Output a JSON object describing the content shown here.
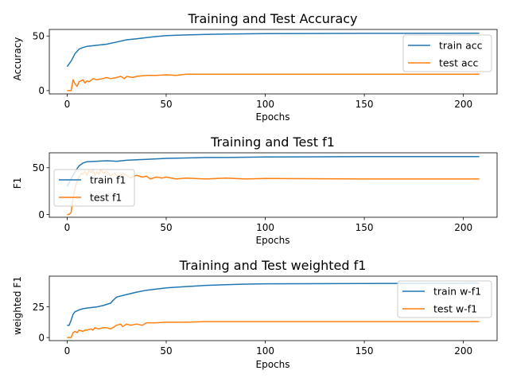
{
  "colors": {
    "train": "#1f77b4",
    "test": "#ff7f0e"
  },
  "chart_data": [
    {
      "type": "line",
      "title": "Training and Test Accuracy",
      "xlabel": "Epochs",
      "ylabel": "Accuracy",
      "xlim": [
        -9,
        217
      ],
      "ylim": [
        -3,
        56
      ],
      "xticks": [
        0,
        50,
        100,
        150,
        200
      ],
      "yticks": [
        0,
        50
      ],
      "legend": "upper-right",
      "series": [
        {
          "name": "train acc",
          "color": "#1f77b4",
          "points": [
            [
              0,
              22
            ],
            [
              2,
              27
            ],
            [
              4,
              34
            ],
            [
              6,
              38
            ],
            [
              8,
              39.5
            ],
            [
              10,
              40.5
            ],
            [
              15,
              41.5
            ],
            [
              20,
              42.5
            ],
            [
              25,
              44.5
            ],
            [
              30,
              46.5
            ],
            [
              35,
              47.5
            ],
            [
              40,
              48.5
            ],
            [
              45,
              49.5
            ],
            [
              50,
              50.3
            ],
            [
              60,
              51
            ],
            [
              70,
              51.4
            ],
            [
              80,
              51.8
            ],
            [
              90,
              52
            ],
            [
              100,
              52.2
            ],
            [
              150,
              52.4
            ],
            [
              208,
              52.5
            ]
          ]
        },
        {
          "name": "test acc",
          "color": "#ff7f0e",
          "points": [
            [
              0,
              0
            ],
            [
              1,
              0
            ],
            [
              2,
              0
            ],
            [
              3,
              10
            ],
            [
              4,
              6
            ],
            [
              5,
              4
            ],
            [
              6,
              8
            ],
            [
              8,
              10
            ],
            [
              9,
              7
            ],
            [
              10,
              9
            ],
            [
              11,
              8
            ],
            [
              13,
              11
            ],
            [
              15,
              10
            ],
            [
              18,
              11
            ],
            [
              20,
              12
            ],
            [
              22,
              11
            ],
            [
              25,
              12
            ],
            [
              27,
              13
            ],
            [
              29,
              11
            ],
            [
              30,
              13
            ],
            [
              33,
              12
            ],
            [
              35,
              13
            ],
            [
              40,
              14
            ],
            [
              45,
              14
            ],
            [
              50,
              14.5
            ],
            [
              55,
              14
            ],
            [
              60,
              15
            ],
            [
              70,
              15
            ],
            [
              80,
              15
            ],
            [
              100,
              15
            ],
            [
              150,
              15
            ],
            [
              208,
              15
            ]
          ]
        }
      ]
    },
    {
      "type": "line",
      "title": "Training and Test f1",
      "xlabel": "Epochs",
      "ylabel": "F1",
      "xlim": [
        -9,
        217
      ],
      "ylim": [
        -3,
        66
      ],
      "xticks": [
        0,
        50,
        100,
        150,
        200
      ],
      "yticks": [
        0,
        50
      ],
      "legend": "center-left",
      "series": [
        {
          "name": "train f1",
          "color": "#1f77b4",
          "points": [
            [
              0,
              30
            ],
            [
              2,
              38
            ],
            [
              4,
              46
            ],
            [
              6,
              52
            ],
            [
              8,
              55
            ],
            [
              10,
              56.5
            ],
            [
              15,
              57
            ],
            [
              20,
              57.5
            ],
            [
              25,
              57
            ],
            [
              30,
              58
            ],
            [
              35,
              58.5
            ],
            [
              40,
              59
            ],
            [
              50,
              60
            ],
            [
              60,
              60.5
            ],
            [
              70,
              61
            ],
            [
              80,
              61
            ],
            [
              100,
              61.5
            ],
            [
              150,
              62
            ],
            [
              208,
              62
            ]
          ]
        },
        {
          "name": "test f1",
          "color": "#ff7f0e",
          "points": [
            [
              0,
              0
            ],
            [
              1,
              0
            ],
            [
              2,
              2
            ],
            [
              3,
              18
            ],
            [
              4,
              28
            ],
            [
              5,
              35
            ],
            [
              6,
              40
            ],
            [
              7,
              44
            ],
            [
              8,
              43
            ],
            [
              9,
              46
            ],
            [
              10,
              42
            ],
            [
              11,
              47
            ],
            [
              12,
              45
            ],
            [
              13,
              48
            ],
            [
              14,
              42
            ],
            [
              15,
              46
            ],
            [
              16,
              43
            ],
            [
              17,
              48
            ],
            [
              18,
              44
            ],
            [
              20,
              46
            ],
            [
              22,
              41
            ],
            [
              24,
              44
            ],
            [
              26,
              40
            ],
            [
              28,
              44
            ],
            [
              30,
              42
            ],
            [
              32,
              39
            ],
            [
              35,
              42
            ],
            [
              38,
              40
            ],
            [
              40,
              41
            ],
            [
              42,
              38
            ],
            [
              45,
              40
            ],
            [
              48,
              39
            ],
            [
              50,
              40
            ],
            [
              55,
              38
            ],
            [
              60,
              39
            ],
            [
              70,
              38
            ],
            [
              80,
              39
            ],
            [
              90,
              38
            ],
            [
              100,
              38.5
            ],
            [
              150,
              38
            ],
            [
              208,
              38
            ]
          ]
        }
      ]
    },
    {
      "type": "line",
      "title": "Training and Test weighted f1",
      "xlabel": "Epochs",
      "ylabel": "weighted F1",
      "xlim": [
        -9,
        217
      ],
      "ylim": [
        -2.5,
        50
      ],
      "xticks": [
        0,
        50,
        100,
        150,
        200
      ],
      "yticks": [
        0,
        25
      ],
      "legend": "upper-right",
      "series": [
        {
          "name": "train w-f1",
          "color": "#1f77b4",
          "points": [
            [
              0,
              10
            ],
            [
              1,
              10
            ],
            [
              2,
              14
            ],
            [
              3,
              19
            ],
            [
              4,
              21
            ],
            [
              6,
              22.5
            ],
            [
              8,
              23.5
            ],
            [
              10,
              24
            ],
            [
              15,
              25
            ],
            [
              18,
              26
            ],
            [
              20,
              27
            ],
            [
              22,
              28
            ],
            [
              23,
              30
            ],
            [
              25,
              33
            ],
            [
              30,
              35
            ],
            [
              35,
              37
            ],
            [
              40,
              38.5
            ],
            [
              45,
              39.5
            ],
            [
              50,
              40.5
            ],
            [
              55,
              41
            ],
            [
              60,
              41.5
            ],
            [
              70,
              42.5
            ],
            [
              80,
              43
            ],
            [
              90,
              43.5
            ],
            [
              100,
              43.8
            ],
            [
              150,
              44
            ],
            [
              208,
              44.2
            ]
          ]
        },
        {
          "name": "test w-f1",
          "color": "#ff7f0e",
          "points": [
            [
              0,
              0
            ],
            [
              1,
              0
            ],
            [
              2,
              0
            ],
            [
              3,
              4
            ],
            [
              4,
              5
            ],
            [
              5,
              4
            ],
            [
              6,
              6
            ],
            [
              8,
              5
            ],
            [
              9,
              6
            ],
            [
              10,
              6
            ],
            [
              12,
              7
            ],
            [
              13,
              6
            ],
            [
              14,
              8
            ],
            [
              16,
              7
            ],
            [
              18,
              8
            ],
            [
              20,
              8
            ],
            [
              22,
              7
            ],
            [
              24,
              9
            ],
            [
              25,
              10
            ],
            [
              27,
              11
            ],
            [
              28,
              9
            ],
            [
              30,
              11
            ],
            [
              32,
              10
            ],
            [
              35,
              11
            ],
            [
              38,
              10
            ],
            [
              40,
              12
            ],
            [
              45,
              12
            ],
            [
              50,
              12.5
            ],
            [
              60,
              12.5
            ],
            [
              70,
              13
            ],
            [
              80,
              13
            ],
            [
              100,
              13
            ],
            [
              150,
              13
            ],
            [
              208,
              13
            ]
          ]
        }
      ]
    }
  ]
}
